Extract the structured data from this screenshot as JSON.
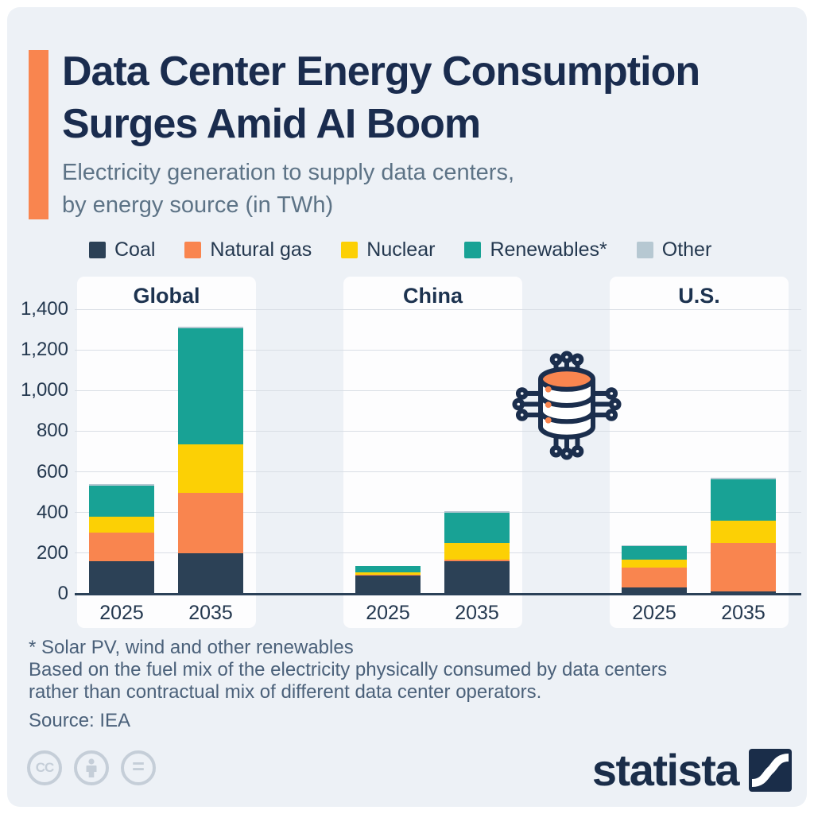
{
  "header": {
    "title_line1": "Data Center Energy Consumption",
    "title_line2": "Surges Amid AI Boom",
    "subtitle_line1": "Electricity generation to supply data centers,",
    "subtitle_line2": "by energy source (in TWh)"
  },
  "chart_data": {
    "type": "bar",
    "stacked": true,
    "unit": "TWh",
    "title": "Data Center Energy Consumption Surges Amid AI Boom",
    "subtitle": "Electricity generation to supply data centers, by energy source (in TWh)",
    "series_order": [
      "Coal",
      "Natural gas",
      "Nuclear",
      "Renewables*",
      "Other"
    ],
    "years": [
      "2025",
      "2035"
    ],
    "y_axis": {
      "max": 1400,
      "grid": true,
      "ticks": [
        {
          "value": 0,
          "label": "0"
        },
        {
          "value": 200,
          "label": "200"
        },
        {
          "value": 400,
          "label": "400"
        },
        {
          "value": 600,
          "label": "600"
        },
        {
          "value": 800,
          "label": "800"
        },
        {
          "value": 1000,
          "label": "1,000"
        },
        {
          "value": 1200,
          "label": "1,200"
        },
        {
          "value": 1400,
          "label": "1,400"
        }
      ]
    },
    "groups": [
      {
        "name": "Global",
        "bars": [
          {
            "year": "2025",
            "values": {
              "Coal": 160,
              "Natural gas": 140,
              "Nuclear": 80,
              "Renewables*": 150,
              "Other": 10
            }
          },
          {
            "year": "2035",
            "values": {
              "Coal": 200,
              "Natural gas": 295,
              "Nuclear": 240,
              "Renewables*": 570,
              "Other": 10
            }
          }
        ]
      },
      {
        "name": "China",
        "bars": [
          {
            "year": "2025",
            "values": {
              "Coal": 90,
              "Natural gas": 5,
              "Nuclear": 10,
              "Renewables*": 30,
              "Other": 0
            }
          },
          {
            "year": "2035",
            "values": {
              "Coal": 160,
              "Natural gas": 10,
              "Nuclear": 80,
              "Renewables*": 150,
              "Other": 5
            }
          }
        ]
      },
      {
        "name": "U.S.",
        "bars": [
          {
            "year": "2025",
            "values": {
              "Coal": 30,
              "Natural gas": 100,
              "Nuclear": 40,
              "Renewables*": 65,
              "Other": 5
            }
          },
          {
            "year": "2035",
            "values": {
              "Coal": 10,
              "Natural gas": 240,
              "Nuclear": 110,
              "Renewables*": 205,
              "Other": 5
            }
          }
        ]
      }
    ],
    "legend_position": "top"
  },
  "colors": {
    "background": "#edf1f6",
    "panel": "#fdfdfe",
    "accent_orange": "#f9854f",
    "title_navy": "#1a2c4e",
    "subtitle_gray": "#5d7386",
    "axis_text": "#24384f",
    "gridline": "#d9dee5",
    "axis_line": "#2b4158",
    "footnote_gray": "#4b617a",
    "cc_gray": "#c5ced8",
    "series": {
      "Coal": "#2c4156",
      "Natural gas": "#f9854f",
      "Nuclear": "#fcd005",
      "Renewables*": "#18a295",
      "Other": "#b6c8d2"
    }
  },
  "footnotes": [
    "* Solar PV, wind and other renewables",
    "Based on the fuel mix of the electricity physically consumed by data centers",
    "rather than contractual mix of different data center operators."
  ],
  "source": "Source: IEA",
  "branding": {
    "logo_text": "statista",
    "license_icons": [
      "cc",
      "by",
      "nd"
    ]
  }
}
